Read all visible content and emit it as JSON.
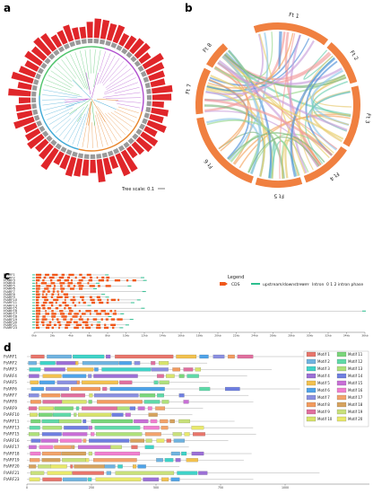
{
  "panel_labels": [
    "a",
    "b",
    "c",
    "d"
  ],
  "panel_a": {
    "tree_scale": "Tree scale: 0.1"
  },
  "panel_b": {
    "chromosomes": [
      "Ft 1",
      "Ft 2",
      "Ft 3",
      "Ft 4",
      "Ft 5",
      "Ft 6",
      "Ft 7",
      "Ft 8"
    ]
  },
  "panel_c": {
    "genes": [
      "FtARF1",
      "FtARF2",
      "FtARF3",
      "FtARF4",
      "FtARF5",
      "FtARF6",
      "FtARF7",
      "FtARF8",
      "FtARF9",
      "FtARF10",
      "FtARF11",
      "FtARF13",
      "FtARF15",
      "FtARF16",
      "FtARF17",
      "FtARF18",
      "FtARF19",
      "FtARF20",
      "FtARF21",
      "FtARF23"
    ],
    "legend_title": "Legend",
    "legend_cds": "CDS",
    "legend_utr": "upstream/downstream",
    "legend_intron": "Intron",
    "legend_phase": "0 1 2  intron phase",
    "axis_ticks": [
      "0kb",
      "2kb",
      "4kb",
      "6kb",
      "8kb",
      "10kb",
      "12kb",
      "14kb",
      "16kb",
      "18kb",
      "20kb",
      "22kb",
      "24kb",
      "26kb",
      "28kb",
      "30kb",
      "32kb",
      "34kb",
      "36kb"
    ],
    "colors": {
      "cds": "#f0581a",
      "utr": "#2dbf8f",
      "intron": "#888888"
    }
  },
  "panel_d": {
    "genes": [
      "FtARF1",
      "FtARF2",
      "FtARF3",
      "FtARF4",
      "FtARF5",
      "FtARF6",
      "FtARF7",
      "FtARF8",
      "FtARF9",
      "FtARF10",
      "FtARF11",
      "FtARF13",
      "FtARF15",
      "FtARF16",
      "FtARF17",
      "FtARF18",
      "FtARF19",
      "FtARF20",
      "FtARF21",
      "FtARF23"
    ],
    "motifs": [
      "Motif 1",
      "Motif 2",
      "Motif 3",
      "Motif 4",
      "Motif 5",
      "Motif 6",
      "Motif 7",
      "Motif 8",
      "Motif 9",
      "Motif 10",
      "Motif 11",
      "Motif 12",
      "Motif 13",
      "Motif 14",
      "Motif 15",
      "Motif 16",
      "Motif 17",
      "Motif 18",
      "Motif 19",
      "Motif 20"
    ],
    "motif_colors": [
      "#e8756b",
      "#6fb3e0",
      "#3fd3c8",
      "#9b6fd6",
      "#f2c14e",
      "#4fa3e8",
      "#8a8fe0",
      "#f29b5e",
      "#e06f9e",
      "#d7e36b",
      "#7ad67a",
      "#5fd9a8",
      "#aee07a",
      "#6f7fe0",
      "#c86fd6",
      "#f07fcf",
      "#f2a36b",
      "#d6a35e",
      "#c8e07a",
      "#e8e86b"
    ],
    "axis_ticks": [
      "0",
      "250",
      "500",
      "750",
      "1000"
    ]
  }
}
